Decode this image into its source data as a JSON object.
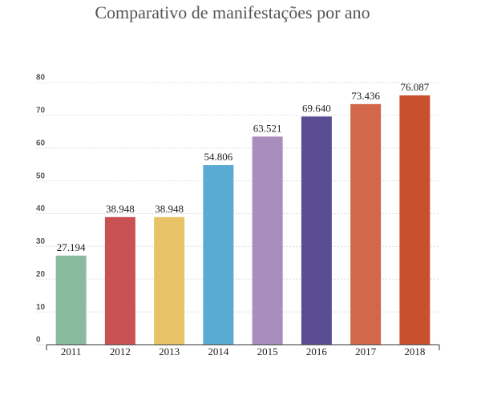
{
  "chart_data": {
    "type": "bar",
    "title": "Comparativo de manifestações por ano",
    "categories": [
      "2011",
      "2012",
      "2013",
      "2014",
      "2015",
      "2016",
      "2017",
      "2018"
    ],
    "values": [
      27.194,
      38.948,
      38.948,
      54.806,
      63.521,
      69.64,
      73.436,
      76.087
    ],
    "value_labels": [
      "27.194",
      "38.948",
      "38.948",
      "54.806",
      "63.521",
      "69.640",
      "73.436",
      "76.087"
    ],
    "colors": [
      "#8aba9e",
      "#c85253",
      "#e8c266",
      "#5aabd3",
      "#a88dbd",
      "#5a4d94",
      "#d2674a",
      "#c9502f"
    ],
    "ylim": [
      0,
      80
    ],
    "yticks": [
      0,
      10,
      20,
      30,
      40,
      50,
      60,
      70,
      80
    ],
    "grid": true
  }
}
